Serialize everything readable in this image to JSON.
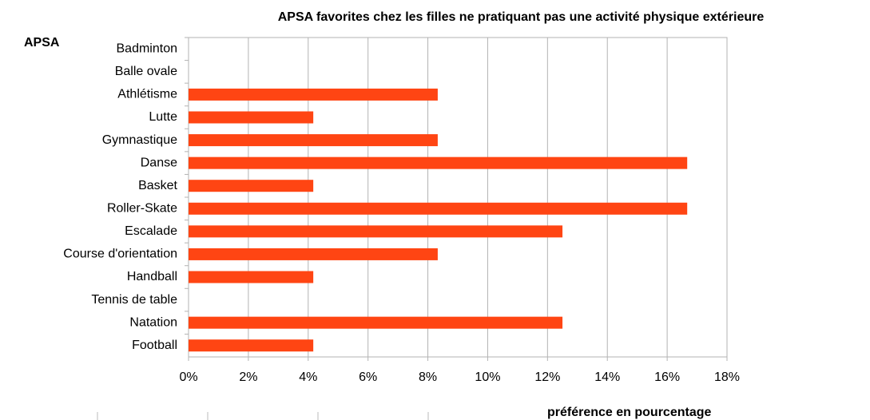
{
  "chart_data": {
    "type": "bar",
    "orientation": "horizontal",
    "title": "APSA favorites chez les filles ne pratiquant pas une activité physique extérieure",
    "y_label": "APSA",
    "x_label": "préférence en pourcentage",
    "categories": [
      "Badminton",
      "Balle ovale",
      "Athlétisme",
      "Lutte",
      "Gymnastique",
      "Danse",
      "Basket",
      "Roller-Skate",
      "Escalade",
      "Course d'orientation",
      "Handball",
      "Tennis de table",
      "Natation",
      "Football"
    ],
    "values": [
      0,
      0,
      8.33,
      4.17,
      8.33,
      16.67,
      4.17,
      16.67,
      12.5,
      8.33,
      4.17,
      0,
      12.5,
      4.17
    ],
    "color": "#ff4513",
    "xlim": [
      0,
      18
    ],
    "xticks": [
      {
        "value": 0,
        "label": "0%"
      },
      {
        "value": 2,
        "label": "2%"
      },
      {
        "value": 4,
        "label": "4%"
      },
      {
        "value": 6,
        "label": "6%"
      },
      {
        "value": 8,
        "label": "8%"
      },
      {
        "value": 10,
        "label": "10%"
      },
      {
        "value": 12,
        "label": "12%"
      },
      {
        "value": 14,
        "label": "14%"
      },
      {
        "value": 16,
        "label": "16%"
      },
      {
        "value": 18,
        "label": "18%"
      }
    ],
    "grid": true
  }
}
